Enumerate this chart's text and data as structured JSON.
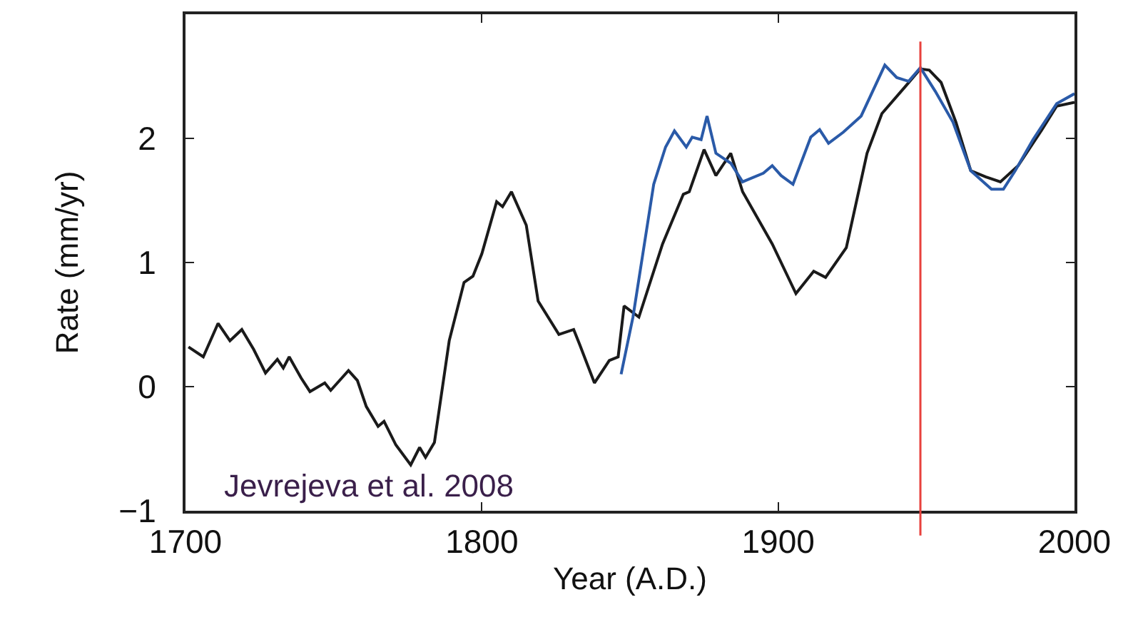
{
  "chart_data": {
    "type": "line",
    "xlabel": "Year (A.D.)",
    "ylabel": "Rate (mm/yr)",
    "xlim": [
      1700,
      2000
    ],
    "xticks": [
      1700,
      1800,
      1900,
      2000
    ],
    "ylim": [
      -1,
      3
    ],
    "yticks": [
      {
        "value": -1,
        "label": "−1"
      },
      0,
      1,
      2
    ],
    "grid": false,
    "marker": "none",
    "line_style": "solid",
    "annotations": [
      "Jevrejeva et al. 2008"
    ],
    "ref_lines": [
      {
        "axis": "x",
        "value": 1948,
        "color": "#e8413c"
      }
    ],
    "series": [
      {
        "color": "#1a1a1a",
        "x": [
          1701,
          1706,
          1711,
          1715,
          1719,
          1723,
          1727,
          1731,
          1733,
          1735,
          1739,
          1742,
          1747,
          1749,
          1755,
          1758,
          1761,
          1765,
          1767,
          1771,
          1776,
          1779,
          1781,
          1784,
          1789,
          1794,
          1797,
          1800,
          1805,
          1807,
          1810,
          1815,
          1819,
          1826,
          1831,
          1833,
          1838,
          1843,
          1846,
          1848,
          1853,
          1861,
          1868,
          1870,
          1875,
          1879,
          1884,
          1888,
          1898,
          1906,
          1912,
          1916,
          1923,
          1930,
          1935,
          1943,
          1948,
          1951,
          1955,
          1960,
          1965,
          1970,
          1975,
          1981,
          1989,
          1994,
          2000
        ],
        "values": [
          0.32,
          0.24,
          0.51,
          0.37,
          0.46,
          0.3,
          0.11,
          0.22,
          0.15,
          0.24,
          0.07,
          -0.04,
          0.03,
          -0.03,
          0.13,
          0.05,
          -0.16,
          -0.32,
          -0.28,
          -0.47,
          -0.63,
          -0.49,
          -0.57,
          -0.45,
          0.37,
          0.84,
          0.89,
          1.07,
          1.49,
          1.45,
          1.57,
          1.3,
          0.69,
          0.42,
          0.46,
          0.34,
          0.03,
          0.21,
          0.24,
          0.65,
          0.56,
          1.15,
          1.55,
          1.57,
          1.91,
          1.7,
          1.88,
          1.57,
          1.15,
          0.75,
          0.93,
          0.88,
          1.12,
          1.88,
          2.2,
          2.42,
          2.56,
          2.55,
          2.45,
          2.13,
          1.74,
          1.69,
          1.65,
          1.78,
          2.07,
          2.26,
          2.29
        ]
      },
      {
        "color": "#2a5aa8",
        "x": [
          1847,
          1851,
          1858,
          1862,
          1865,
          1869,
          1871,
          1874,
          1876,
          1879,
          1884,
          1888,
          1895,
          1898,
          1901,
          1905,
          1911,
          1914,
          1917,
          1922,
          1928,
          1936,
          1940,
          1944,
          1948,
          1953,
          1959,
          1965,
          1972,
          1976,
          1980,
          1986,
          1994,
          2000
        ],
        "values": [
          0.1,
          0.56,
          1.63,
          1.93,
          2.06,
          1.93,
          2.01,
          1.99,
          2.18,
          1.88,
          1.8,
          1.65,
          1.72,
          1.78,
          1.7,
          1.63,
          2.01,
          2.07,
          1.96,
          2.05,
          2.18,
          2.59,
          2.49,
          2.46,
          2.57,
          2.38,
          2.13,
          1.74,
          1.59,
          1.59,
          1.74,
          1.99,
          2.28,
          2.36
        ]
      }
    ]
  }
}
